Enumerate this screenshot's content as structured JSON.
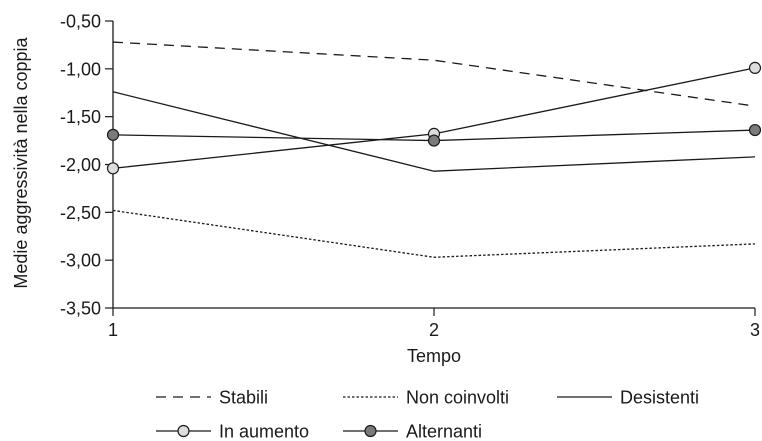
{
  "chart_data": {
    "type": "line",
    "x": [
      1,
      2,
      3
    ],
    "xlabel": "Tempo",
    "ylabel": "Medie aggressività nella coppia",
    "xlim": [
      1,
      3
    ],
    "ylim": [
      -3.5,
      -0.5
    ],
    "xticks": [
      "1",
      "2",
      "3"
    ],
    "yticks": [
      "-0,50",
      "-1,00",
      "-1,50",
      "-2,00",
      "-2,50",
      "-3,00",
      "-3,50"
    ],
    "ytick_values": [
      -0.5,
      -1.0,
      -1.5,
      -2.0,
      -2.5,
      -3.0,
      -3.5
    ],
    "grid": false,
    "legend_position": "bottom",
    "series": [
      {
        "name": "Stabili",
        "values": [
          -0.72,
          -0.91,
          -1.39
        ],
        "style": "dashed",
        "marker": "none",
        "color": "#1a1a1a"
      },
      {
        "name": "Non coinvolti",
        "values": [
          -2.48,
          -2.97,
          -2.83
        ],
        "style": "dotted",
        "marker": "none",
        "color": "#1a1a1a"
      },
      {
        "name": "Desistenti",
        "values": [
          -1.24,
          -2.07,
          -1.92
        ],
        "style": "solid",
        "marker": "none",
        "color": "#1a1a1a"
      },
      {
        "name": "In aumento",
        "values": [
          -2.04,
          -1.68,
          -0.99
        ],
        "style": "solid",
        "marker": "open-circle",
        "color": "#1a1a1a"
      },
      {
        "name": "Alternanti",
        "values": [
          -1.69,
          -1.75,
          -1.64
        ],
        "style": "solid",
        "marker": "filled-circle",
        "color": "#1a1a1a"
      }
    ]
  }
}
